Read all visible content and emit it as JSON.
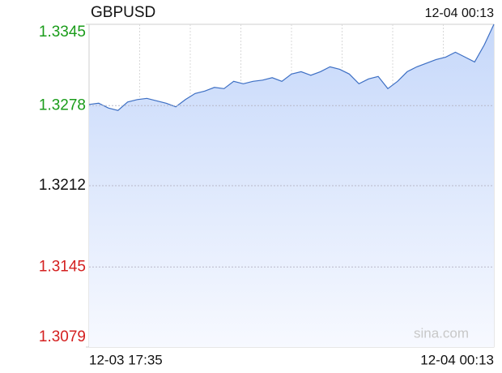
{
  "chart_data": {
    "type": "area",
    "title": "GBPUSD",
    "timestamp": "12-04 00:13",
    "x_labels": [
      "12-03 17:35",
      "12-04 00:13"
    ],
    "watermark": "sina.com",
    "values": [
      1.3279,
      1.328,
      1.3276,
      1.3274,
      1.3281,
      1.3283,
      1.3284,
      1.3282,
      1.328,
      1.3277,
      1.3283,
      1.3288,
      1.329,
      1.3293,
      1.3292,
      1.3298,
      1.3296,
      1.3298,
      1.3299,
      1.3301,
      1.3298,
      1.3304,
      1.3306,
      1.3303,
      1.3306,
      1.331,
      1.3308,
      1.3304,
      1.3296,
      1.33,
      1.3302,
      1.3292,
      1.3298,
      1.3306,
      1.331,
      1.3313,
      1.3316,
      1.3318,
      1.3322,
      1.3318,
      1.3314,
      1.3328,
      1.3345
    ],
    "color": "#3d6fc4",
    "ylim": [
      1.3079,
      1.3345
    ],
    "yticks": [
      1.3345,
      1.3278,
      1.3212,
      1.3145,
      1.3079
    ],
    "ytick_colors": [
      "#1a9c1a",
      "#1a9c1a",
      "#111111",
      "#d42020",
      "#d42020"
    ],
    "grid": true
  }
}
